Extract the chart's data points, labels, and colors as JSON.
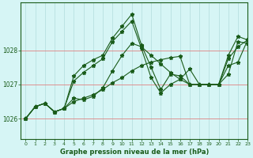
{
  "title": "Graphe pression niveau de la mer (hPa)",
  "background_color": "#d6f5f5",
  "grid_color": "#b8e0e0",
  "line_color": "#1a5c1a",
  "xlim": [
    -0.5,
    23
  ],
  "ylim": [
    1025.4,
    1029.4
  ],
  "yticks": [
    1026,
    1027,
    1028
  ],
  "ytick_labels": [
    "1026",
    "1027",
    "1028"
  ],
  "xticks": [
    0,
    1,
    2,
    3,
    4,
    5,
    6,
    7,
    8,
    9,
    10,
    11,
    12,
    13,
    14,
    15,
    16,
    17,
    18,
    19,
    20,
    21,
    22,
    23
  ],
  "series": [
    [
      1026.0,
      1026.35,
      1026.45,
      1026.2,
      1026.3,
      1026.5,
      1026.6,
      1026.7,
      1026.85,
      1027.05,
      1027.2,
      1027.4,
      1027.55,
      1027.65,
      1027.72,
      1027.78,
      1027.82,
      1027.0,
      1027.0,
      1027.0,
      1027.0,
      1027.3,
      1028.25,
      1028.2
    ],
    [
      1026.0,
      1026.35,
      1026.45,
      1026.2,
      1026.3,
      1026.6,
      1026.55,
      1026.65,
      1026.9,
      1027.4,
      1027.85,
      1028.2,
      1028.1,
      1027.85,
      1027.6,
      1027.35,
      1027.15,
      1027.45,
      1027.0,
      1027.0,
      1027.0,
      1027.55,
      1027.65,
      1028.3
    ],
    [
      1026.0,
      1026.35,
      1026.45,
      1026.2,
      1026.3,
      1027.25,
      1027.55,
      1027.72,
      1027.85,
      1028.35,
      1028.7,
      1029.05,
      1028.15,
      1027.5,
      1026.85,
      1027.3,
      1027.25,
      1027.0,
      1027.0,
      1027.0,
      1027.0,
      1027.85,
      1028.4,
      1028.3
    ],
    [
      1026.0,
      1026.35,
      1026.45,
      1026.2,
      1026.3,
      1027.1,
      1027.35,
      1027.55,
      1027.75,
      1028.25,
      1028.55,
      1028.85,
      1028.05,
      1027.2,
      1026.75,
      1027.0,
      1027.15,
      1027.0,
      1027.0,
      1027.0,
      1027.0,
      1027.75,
      1028.1,
      1028.3
    ]
  ]
}
